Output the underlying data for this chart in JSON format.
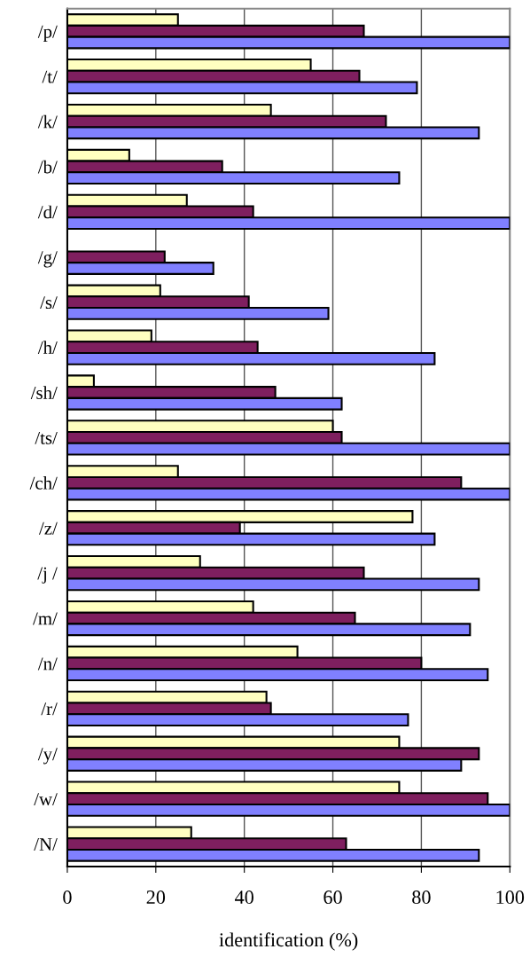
{
  "chart_data": {
    "type": "bar",
    "orientation": "horizontal",
    "xlabel": "identification (%)",
    "categories": [
      "/p/",
      "/t/",
      "/k/",
      "/b/",
      "/d/",
      "/g/",
      "/s/",
      "/h/",
      "/sh/",
      "/ts/",
      "/ch/",
      "/z/",
      "/j /",
      "/m/",
      "/n/",
      "/r/",
      "/y/",
      "/w/",
      "/N/"
    ],
    "series": [
      {
        "color": "#ffffc0",
        "values": [
          25,
          55,
          46,
          14,
          27,
          null,
          21,
          19,
          6,
          60,
          25,
          78,
          30,
          42,
          52,
          45,
          75,
          75,
          28
        ]
      },
      {
        "color": "#7f1f5f",
        "values": [
          67,
          66,
          72,
          35,
          42,
          22,
          41,
          43,
          47,
          62,
          89,
          39,
          67,
          65,
          80,
          46,
          93,
          95,
          63
        ]
      },
      {
        "color": "#8080ff",
        "values": [
          100,
          79,
          93,
          75,
          100,
          33,
          59,
          83,
          62,
          100,
          100,
          83,
          93,
          91,
          95,
          77,
          89,
          100,
          93
        ]
      }
    ],
    "xlim": [
      0,
      100
    ],
    "xticks": [
      0,
      20,
      40,
      60,
      80,
      100
    ],
    "grid": "x"
  }
}
